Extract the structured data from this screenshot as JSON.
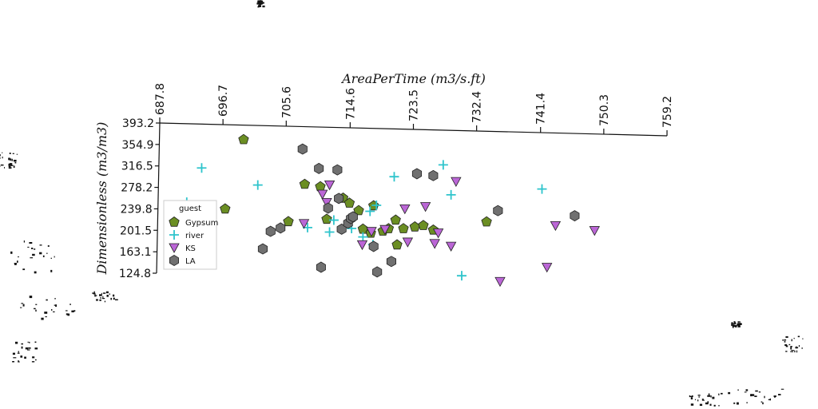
{
  "chart_data": {
    "type": "scatter",
    "xlabel": "AreaPerTime (m3/s.ft)",
    "ylabel": "Dimensionless (m3/m3)",
    "xlim": [
      687.8,
      759.2
    ],
    "ylim": [
      124.8,
      393.2
    ],
    "x_ticks": [
      "687.8",
      "696.7",
      "705.6",
      "714.6",
      "723.5",
      "732.4",
      "741.4",
      "750.3",
      "759.2"
    ],
    "y_ticks": [
      "393.2",
      "354.9",
      "316.5",
      "278.2",
      "239.8",
      "201.5",
      "163.1",
      "124.8"
    ],
    "legend": {
      "title": "guest",
      "placement": "left"
    },
    "series": [
      {
        "name": "Gypsum",
        "marker": "pentagon",
        "color": "#6b8e23",
        "points": [
          [
            699.6,
            386.5
          ],
          [
            697.0,
            262.5
          ],
          [
            705.9,
            239.8
          ],
          [
            708.2,
            306.6
          ],
          [
            710.4,
            302.3
          ],
          [
            711.3,
            244.1
          ],
          [
            713.6,
            281.8
          ],
          [
            714.5,
            272.9
          ],
          [
            715.8,
            259.5
          ],
          [
            716.4,
            226.4
          ],
          [
            717.5,
            219.3
          ],
          [
            717.9,
            268.2
          ],
          [
            719.2,
            223.0
          ],
          [
            720.0,
            227.3
          ],
          [
            721.0,
            242.6
          ],
          [
            721.2,
            198.3
          ],
          [
            722.1,
            227.3
          ],
          [
            723.7,
            230.4
          ],
          [
            724.9,
            232.9
          ],
          [
            726.3,
            224.8
          ],
          [
            733.8,
            239.4
          ]
        ]
      },
      {
        "name": "river",
        "marker": "plus",
        "color": "#2ec4cc",
        "points": [
          [
            691.6,
            274.5
          ],
          [
            693.7,
            335.7
          ],
          [
            701.6,
            305.2
          ],
          [
            708.6,
            229.2
          ],
          [
            711.7,
            221.2
          ],
          [
            712.3,
            242.5
          ],
          [
            714.8,
            227.6
          ],
          [
            716.4,
            212.4
          ],
          [
            717.4,
            258.3
          ],
          [
            717.8,
            198.7
          ],
          [
            718.3,
            269.0
          ],
          [
            720.8,
            320.1
          ],
          [
            727.7,
            341.3
          ],
          [
            728.8,
            287.7
          ],
          [
            730.3,
            143.1
          ],
          [
            741.6,
            298.1
          ]
        ]
      },
      {
        "name": "KS",
        "marker": "triangle-down",
        "color": "#bb66d6",
        "points": [
          [
            708.1,
            236.5
          ],
          [
            710.7,
            289.0
          ],
          [
            711.3,
            274.2
          ],
          [
            711.7,
            305.6
          ],
          [
            716.3,
            198.7
          ],
          [
            717.6,
            222.3
          ],
          [
            719.5,
            225.9
          ],
          [
            722.3,
            262.7
          ],
          [
            722.7,
            203.4
          ],
          [
            725.2,
            266.8
          ],
          [
            726.5,
            200.8
          ],
          [
            727.0,
            219.7
          ],
          [
            728.8,
            196.0
          ],
          [
            729.5,
            311.6
          ],
          [
            735.7,
            133.0
          ],
          [
            742.3,
            158.4
          ],
          [
            743.5,
            232.8
          ],
          [
            749.0,
            223.9
          ]
        ]
      },
      {
        "name": "LA",
        "marker": "hexagon",
        "color": "#707070",
        "points": [
          [
            702.3,
            191.0
          ],
          [
            703.4,
            222.4
          ],
          [
            704.8,
            228.4
          ],
          [
            707.9,
            369.5
          ],
          [
            710.2,
            334.8
          ],
          [
            710.5,
            158.3
          ],
          [
            711.5,
            264.0
          ],
          [
            712.8,
            332.3
          ],
          [
            713.0,
            281.3
          ],
          [
            713.4,
            226.3
          ],
          [
            714.3,
            237.0
          ],
          [
            714.7,
            245.5
          ],
          [
            715.0,
            248.5
          ],
          [
            717.9,
            195.5
          ],
          [
            718.4,
            149.9
          ],
          [
            720.4,
            168.7
          ],
          [
            724.0,
            325.4
          ],
          [
            726.3,
            322.1
          ],
          [
            735.4,
            259.4
          ],
          [
            746.2,
            250.3
          ]
        ]
      }
    ]
  }
}
